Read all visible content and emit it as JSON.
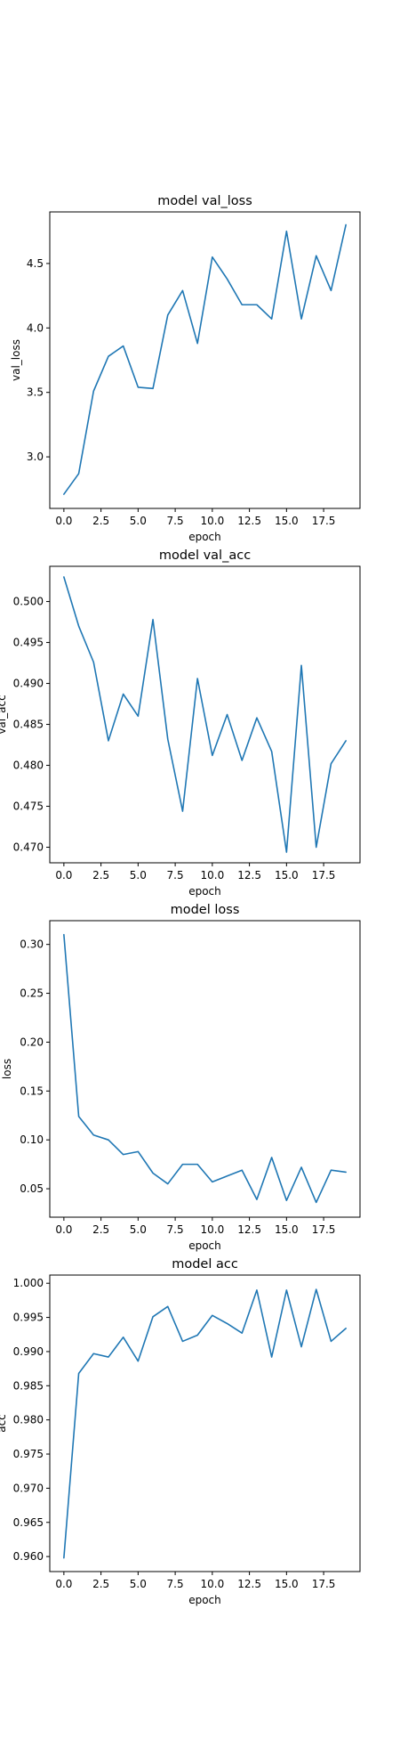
{
  "colors": {
    "series": "#1f77b4",
    "axes": "#000000",
    "background": "#ffffff"
  },
  "chart_data": [
    {
      "id": "val_loss",
      "type": "line",
      "title": "model val_loss",
      "xlabel": "epoch",
      "ylabel": "val_loss",
      "xlim": [
        -0.95,
        19.95
      ],
      "ylim": [
        2.6,
        4.9
      ],
      "xticks": [
        0.0,
        2.5,
        5.0,
        7.5,
        10.0,
        12.5,
        15.0,
        17.5
      ],
      "xtick_labels": [
        "0.0",
        "2.5",
        "5.0",
        "7.5",
        "10.0",
        "12.5",
        "15.0",
        "17.5"
      ],
      "yticks": [
        3.0,
        3.5,
        4.0,
        4.5
      ],
      "ytick_labels": [
        "3.0",
        "3.5",
        "4.0",
        "4.5"
      ],
      "grid": false,
      "x": [
        0,
        1,
        2,
        3,
        4,
        5,
        6,
        7,
        8,
        9,
        10,
        11,
        12,
        13,
        14,
        15,
        16,
        17,
        18,
        19
      ],
      "series": [
        {
          "values": [
            2.71,
            2.87,
            3.51,
            3.78,
            3.86,
            3.54,
            3.53,
            4.1,
            4.29,
            3.88,
            4.55,
            4.38,
            4.18,
            4.18,
            4.07,
            4.75,
            4.07,
            4.56,
            4.29,
            4.8
          ]
        }
      ]
    },
    {
      "id": "val_acc",
      "type": "line",
      "title": "model val_acc",
      "xlabel": "epoch",
      "ylabel": "val_acc",
      "xlim": [
        -0.95,
        19.95
      ],
      "ylim": [
        0.4681,
        0.5043
      ],
      "xticks": [
        0.0,
        2.5,
        5.0,
        7.5,
        10.0,
        12.5,
        15.0,
        17.5
      ],
      "xtick_labels": [
        "0.0",
        "2.5",
        "5.0",
        "7.5",
        "10.0",
        "12.5",
        "15.0",
        "17.5"
      ],
      "yticks": [
        0.47,
        0.475,
        0.48,
        0.485,
        0.49,
        0.495,
        0.5
      ],
      "ytick_labels": [
        "0.470",
        "0.475",
        "0.480",
        "0.485",
        "0.490",
        "0.495",
        "0.500"
      ],
      "grid": false,
      "x": [
        0,
        1,
        2,
        3,
        4,
        5,
        6,
        7,
        8,
        9,
        10,
        11,
        12,
        13,
        14,
        15,
        16,
        17,
        18,
        19
      ],
      "series": [
        {
          "values": [
            0.503,
            0.497,
            0.4926,
            0.483,
            0.4887,
            0.486,
            0.4978,
            0.4832,
            0.4744,
            0.4906,
            0.4812,
            0.4862,
            0.4806,
            0.4858,
            0.4817,
            0.4694,
            0.4922,
            0.47,
            0.4802,
            0.483
          ]
        }
      ]
    },
    {
      "id": "loss",
      "type": "line",
      "title": "model loss",
      "xlabel": "epoch",
      "ylabel": "loss",
      "xlim": [
        -0.95,
        19.95
      ],
      "ylim": [
        0.0209,
        0.3243
      ],
      "xticks": [
        0.0,
        2.5,
        5.0,
        7.5,
        10.0,
        12.5,
        15.0,
        17.5
      ],
      "xtick_labels": [
        "0.0",
        "2.5",
        "5.0",
        "7.5",
        "10.0",
        "12.5",
        "15.0",
        "17.5"
      ],
      "yticks": [
        0.05,
        0.1,
        0.15,
        0.2,
        0.25,
        0.3
      ],
      "ytick_labels": [
        "0.05",
        "0.10",
        "0.15",
        "0.20",
        "0.25",
        "0.30"
      ],
      "grid": false,
      "x": [
        0,
        1,
        2,
        3,
        4,
        5,
        6,
        7,
        8,
        9,
        10,
        11,
        12,
        13,
        14,
        15,
        16,
        17,
        18,
        19
      ],
      "series": [
        {
          "values": [
            0.31,
            0.124,
            0.105,
            0.1,
            0.085,
            0.088,
            0.066,
            0.055,
            0.075,
            0.075,
            0.057,
            0.063,
            0.069,
            0.039,
            0.082,
            0.038,
            0.072,
            0.036,
            0.069,
            0.067
          ]
        }
      ]
    },
    {
      "id": "acc",
      "type": "line",
      "title": "model acc",
      "xlabel": "epoch",
      "ylabel": "acc",
      "xlim": [
        -0.95,
        19.95
      ],
      "ylim": [
        0.9578,
        1.0012
      ],
      "xticks": [
        0.0,
        2.5,
        5.0,
        7.5,
        10.0,
        12.5,
        15.0,
        17.5
      ],
      "xtick_labels": [
        "0.0",
        "2.5",
        "5.0",
        "7.5",
        "10.0",
        "12.5",
        "15.0",
        "17.5"
      ],
      "yticks": [
        0.96,
        0.965,
        0.97,
        0.975,
        0.98,
        0.985,
        0.99,
        0.995,
        1.0
      ],
      "ytick_labels": [
        "0.960",
        "0.965",
        "0.970",
        "0.975",
        "0.980",
        "0.985",
        "0.990",
        "0.995",
        "1.000"
      ],
      "grid": false,
      "x": [
        0,
        1,
        2,
        3,
        4,
        5,
        6,
        7,
        8,
        9,
        10,
        11,
        12,
        13,
        14,
        15,
        16,
        17,
        18,
        19
      ],
      "series": [
        {
          "values": [
            0.9598,
            0.9868,
            0.9897,
            0.9892,
            0.9921,
            0.9886,
            0.9951,
            0.9966,
            0.9915,
            0.9924,
            0.9953,
            0.9941,
            0.9927,
            0.999,
            0.9892,
            0.999,
            0.9907,
            0.9991,
            0.9915,
            0.9934
          ]
        }
      ]
    }
  ]
}
